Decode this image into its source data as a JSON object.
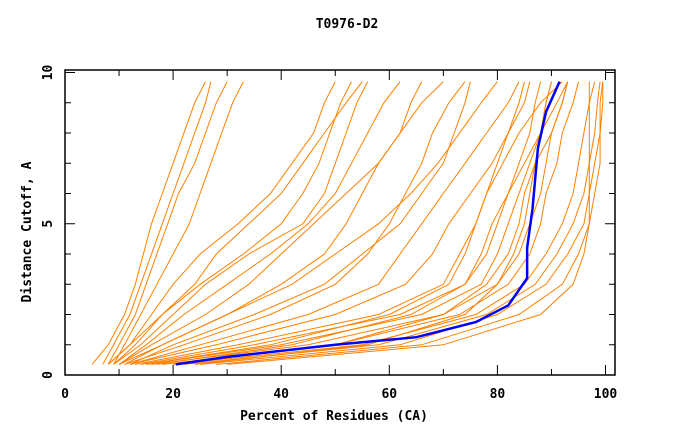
{
  "chart_data": {
    "type": "line",
    "title": "T0976-D2",
    "xlabel": "Percent of Residues (CA)",
    "ylabel": "Distance Cutoff, A",
    "xlim": [
      0,
      100
    ],
    "ylim": [
      0,
      10
    ],
    "x_ticks": [
      "0",
      "20",
      "40",
      "60",
      "80",
      "100"
    ],
    "y_ticks": [
      "0",
      "5",
      "10"
    ],
    "grid": false,
    "colors": {
      "models": "#ff8000",
      "highlight": "#0000ff"
    },
    "distance_levels": [
      0.35,
      1,
      2,
      3,
      4,
      5,
      6,
      7,
      8,
      9,
      9.7
    ],
    "highlight": {
      "x": [
        20.5,
        30,
        50,
        65,
        76,
        82,
        85.5,
        85.5,
        86.5,
        87,
        87.5,
        89,
        91.5
      ],
      "y": [
        0.35,
        0.6,
        1.0,
        1.25,
        1.75,
        2.3,
        3.2,
        4.2,
        5.5,
        6.5,
        7.5,
        8.7,
        9.7
      ]
    },
    "models": [
      [
        5,
        8,
        11,
        13,
        14.5,
        16,
        18,
        20,
        22,
        24,
        26
      ],
      [
        7,
        9,
        12,
        14,
        16,
        18,
        20,
        22,
        24,
        26,
        27
      ],
      [
        8,
        10,
        13,
        15,
        17,
        19,
        21,
        24,
        26,
        28,
        30
      ],
      [
        9,
        11,
        14,
        17,
        20,
        23,
        25,
        27,
        29,
        31,
        33
      ],
      [
        8,
        12,
        16,
        20,
        25,
        32,
        38,
        42,
        46,
        48,
        50
      ],
      [
        9,
        13,
        18,
        25,
        33,
        40,
        44,
        47,
        49,
        51,
        53
      ],
      [
        10,
        15,
        22,
        30,
        38,
        45,
        50,
        53,
        56,
        59,
        62
      ],
      [
        10,
        18,
        30,
        40,
        48,
        52,
        55,
        58,
        62,
        66,
        70
      ],
      [
        11,
        22,
        38,
        50,
        56,
        60,
        63,
        66,
        68,
        71,
        74
      ],
      [
        12,
        25,
        45,
        58,
        62,
        66,
        70,
        74,
        78,
        82,
        84
      ],
      [
        12,
        28,
        50,
        63,
        68,
        71,
        75,
        79,
        82,
        85,
        86
      ],
      [
        13,
        32,
        58,
        70,
        73,
        76,
        78,
        80,
        82,
        84,
        85
      ],
      [
        14,
        35,
        62,
        74,
        78,
        80,
        82,
        84,
        86,
        87,
        88
      ],
      [
        15,
        40,
        66,
        77,
        80,
        82,
        84,
        86,
        88,
        89,
        90
      ],
      [
        16,
        45,
        70,
        80,
        84,
        86,
        88,
        89,
        90,
        92,
        93
      ],
      [
        18,
        50,
        73,
        82,
        86,
        88,
        89,
        91,
        92,
        94,
        95
      ],
      [
        20,
        55,
        76,
        85,
        89,
        92,
        94,
        95,
        96,
        97,
        98
      ],
      [
        22,
        58,
        78,
        87,
        91,
        94,
        96,
        97,
        98,
        98.5,
        99
      ],
      [
        25,
        62,
        80,
        89,
        93,
        96,
        97,
        98,
        99,
        99,
        99.5
      ],
      [
        28,
        66,
        84,
        92,
        95,
        97,
        98,
        99,
        99,
        99.5,
        99.5
      ],
      [
        30,
        70,
        88,
        94,
        96,
        97,
        97,
        97,
        97,
        97,
        97
      ],
      [
        24,
        56,
        74,
        80,
        83,
        85,
        86,
        87,
        88,
        89,
        90
      ],
      [
        20,
        50,
        70,
        78,
        82,
        84,
        85,
        87,
        90,
        92,
        93
      ],
      [
        17,
        42,
        64,
        74,
        77,
        79,
        82,
        85,
        88,
        91,
        93
      ],
      [
        15,
        38,
        60,
        71,
        74,
        76,
        78,
        81,
        84,
        88,
        92
      ],
      [
        12,
        20,
        35,
        48,
        55,
        62,
        66,
        70,
        72,
        74,
        75
      ],
      [
        11,
        18,
        30,
        42,
        50,
        58,
        64,
        69,
        73,
        77,
        80
      ],
      [
        10,
        16,
        26,
        34,
        40,
        46,
        52,
        58,
        62,
        64,
        66
      ],
      [
        9,
        14,
        20,
        26,
        34,
        44,
        48,
        50,
        52,
        54,
        56
      ],
      [
        8,
        12,
        18,
        24,
        28,
        34,
        40,
        44,
        48,
        52,
        55
      ]
    ]
  }
}
